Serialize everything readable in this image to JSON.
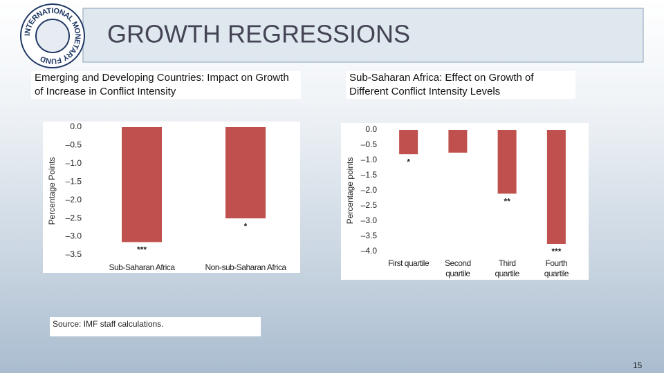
{
  "slide": {
    "title": "GROWTH REGRESSIONS",
    "logo": "INTERNATIONAL MONETARY FUND",
    "source": "Source: IMF staff calculations.",
    "page_number": "15"
  },
  "chart_data": [
    {
      "type": "bar",
      "title": "Emerging and Developing Countries: Impact on Growth of Increase in Conflict Intensity",
      "ylabel": "Percentage Points",
      "categories": [
        "Sub-Saharan Africa",
        "Non-sub-Saharan Africa"
      ],
      "values": [
        -3.15,
        -2.5
      ],
      "annotations": [
        "***",
        "*"
      ],
      "color": "#c0504d",
      "ylim": [
        -3.5,
        0
      ],
      "yticks": [
        {
          "value": 0,
          "label": "0.0"
        },
        {
          "value": -0.5,
          "label": "–0.5"
        },
        {
          "value": -1,
          "label": "–1.0"
        },
        {
          "value": -1.5,
          "label": "–1.5"
        },
        {
          "value": -2,
          "label": "–2.0"
        },
        {
          "value": -2.5,
          "label": "–2.5"
        },
        {
          "value": -3,
          "label": "–3.0"
        },
        {
          "value": -3.5,
          "label": "–3.5"
        }
      ]
    },
    {
      "type": "bar",
      "title": "Sub-Saharan Africa: Effect on Growth of Different Conflict Intensity Levels",
      "ylabel": "Percentage points",
      "categories": [
        "First quartile",
        "Second quartile",
        "Third quartile",
        "Fourth quartile"
      ],
      "values": [
        -0.8,
        -0.75,
        -2.1,
        -3.75
      ],
      "annotations": [
        "*",
        null,
        "**",
        "***"
      ],
      "color": "#c0504d",
      "ylim": [
        -4,
        0
      ],
      "yticks": [
        {
          "value": 0,
          "label": "0.0"
        },
        {
          "value": -0.5,
          "label": "–0.5"
        },
        {
          "value": -1,
          "label": "–1.0"
        },
        {
          "value": -1.5,
          "label": "–1.5"
        },
        {
          "value": -2,
          "label": "–2.0"
        },
        {
          "value": -2.5,
          "label": "–2.5"
        },
        {
          "value": -3,
          "label": "–3.0"
        },
        {
          "value": -3.5,
          "label": "–3.5"
        },
        {
          "value": -4,
          "label": "–4.0"
        }
      ]
    }
  ]
}
